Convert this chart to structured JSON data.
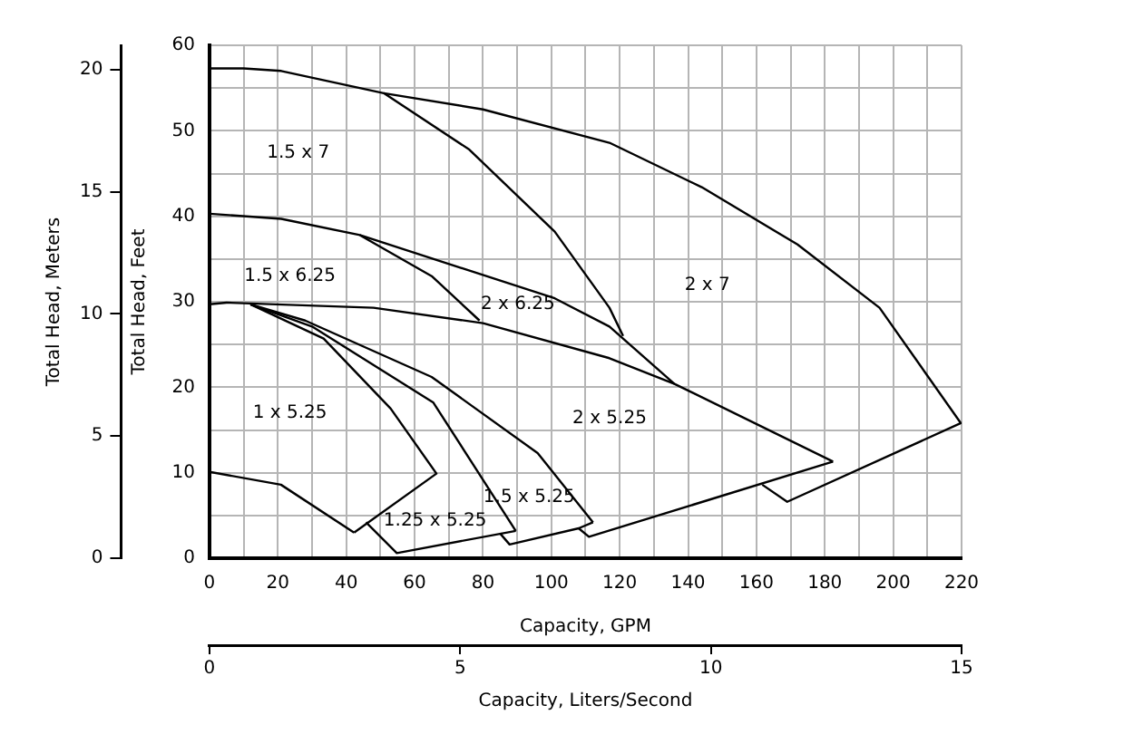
{
  "chart_data": {
    "type": "line",
    "xlabel": "Capacity, GPM",
    "ylabel": "Total Head, Feet",
    "y2label": "Total Head, Meters",
    "x2label": "Capacity, Liters/Second",
    "xlim": [
      0,
      220
    ],
    "xticks": [
      0,
      {
        "value": 10,
        "label": null
      },
      20,
      {
        "value": 30,
        "label": null
      },
      40,
      {
        "value": 50,
        "label": null
      },
      60,
      {
        "value": 70,
        "label": null
      },
      80,
      {
        "value": 90,
        "label": null
      },
      100,
      {
        "value": 110,
        "label": null
      },
      120,
      {
        "value": 130,
        "label": null
      },
      140,
      {
        "value": 150,
        "label": null
      },
      160,
      {
        "value": 170,
        "label": null
      },
      180,
      {
        "value": 190,
        "label": null
      },
      200,
      {
        "value": 210,
        "label": null
      },
      220
    ],
    "ylim": [
      0,
      60
    ],
    "yticks": [
      0,
      {
        "value": 5,
        "label": null
      },
      10,
      {
        "value": 15,
        "label": null
      },
      20,
      {
        "value": 25,
        "label": null
      },
      30,
      {
        "value": 35,
        "label": null
      },
      40,
      {
        "value": 45,
        "label": null
      },
      50,
      {
        "value": 55,
        "label": null
      },
      60
    ],
    "y2lim": [
      0,
      21
    ],
    "y2ticks": [
      0,
      5,
      10,
      15,
      20
    ],
    "x2lim": [
      0,
      15
    ],
    "x2ticks": [
      0,
      5,
      10,
      15
    ],
    "grid": true,
    "legend": false,
    "marker": "none",
    "line_style": "solid",
    "series": [
      {
        "color": "#000000",
        "x": [
          0,
          10,
          21,
          51,
          76,
          101,
          117,
          121
        ],
        "values": [
          57.3,
          57.3,
          57,
          54.4,
          47.8,
          38.2,
          29.3,
          26
        ]
      },
      {
        "color": "#000000",
        "x": [
          51,
          80,
          117,
          144,
          172,
          196,
          219.8,
          169,
          161.7
        ],
        "values": [
          54.4,
          52.5,
          48.6,
          43.4,
          36.7,
          29.3,
          15.8,
          6.6,
          8.6
        ]
      },
      {
        "color": "#000000",
        "x": [
          0,
          21,
          44,
          65,
          79
        ],
        "values": [
          40.3,
          39.7,
          37.8,
          33,
          27.8
        ]
      },
      {
        "color": "#000000",
        "x": [
          44,
          101,
          117,
          136
        ],
        "values": [
          37.8,
          30.4,
          27.1,
          20.4
        ]
      },
      {
        "color": "#000000",
        "x": [
          0,
          5,
          48,
          80,
          117,
          136,
          182.4
        ],
        "values": [
          29.7,
          29.9,
          29.3,
          27.5,
          23.4,
          20.4,
          11.3
        ]
      },
      {
        "color": "#000000",
        "x": [
          182.4,
          111,
          108,
          112.2
        ],
        "values": [
          11.3,
          2.5,
          3.5,
          4.2
        ]
      },
      {
        "color": "#000000",
        "x": [
          12,
          28,
          65,
          96,
          112.2
        ],
        "values": [
          29.7,
          27.8,
          21.2,
          12.3,
          4.2
        ]
      },
      {
        "color": "#000000",
        "x": [
          85,
          87.8,
          108
        ],
        "values": [
          2.9,
          1.6,
          3.5
        ]
      },
      {
        "color": "#000000",
        "x": [
          12,
          30,
          65.5,
          89.6
        ],
        "values": [
          29.7,
          27.1,
          18.2,
          3.2
        ]
      },
      {
        "color": "#000000",
        "x": [
          89.6,
          54.8,
          45.8
        ],
        "values": [
          3.2,
          0.6,
          4.2
        ]
      },
      {
        "color": "#000000",
        "x": [
          12,
          33.4,
          53,
          66.4,
          42.3
        ],
        "values": [
          29.7,
          25.7,
          17.5,
          9.9,
          3.0
        ]
      },
      {
        "color": "#000000",
        "x": [
          0,
          20.9,
          42.3
        ],
        "values": [
          10.1,
          8.6,
          3.0
        ]
      }
    ],
    "annotations": [
      "1.5 x 7",
      "1.5 x 6.25",
      "2 x 6.25",
      "2 x 7",
      "1 x 5.25",
      "2 x 5.25",
      "1.5 x 5.25",
      "1.25 x 5.25"
    ]
  }
}
